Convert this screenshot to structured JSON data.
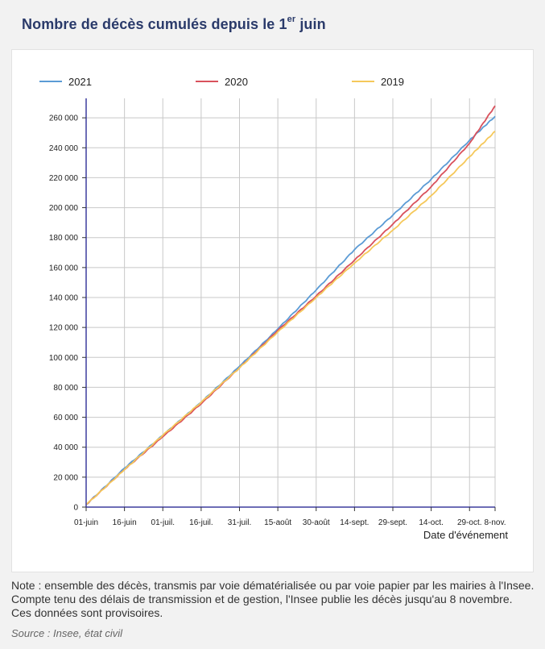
{
  "header": {
    "title_main": "Nombre de décès cumulés depuis le 1",
    "title_sup": "er",
    "title_end": " juin"
  },
  "footer": {
    "note": "Note : ensemble des décès, transmis par voie dématérialisée ou par voie papier par les mairies à l'Insee. Compte tenu des délais de transmission et de gestion, l'Insee publie les décès jusqu'au 8 novembre. Ces données sont provisoires.",
    "source": "Source : Insee, état civil"
  },
  "chart_data": {
    "type": "line",
    "xlabel": "Date d'événement",
    "ylabel": "",
    "x_start": "2021-06-01",
    "x_end": "2021-11-08",
    "x_ticks": [
      {
        "label": "01-juin",
        "date": "2021-06-01"
      },
      {
        "label": "16-juin",
        "date": "2021-06-16"
      },
      {
        "label": "01-juil.",
        "date": "2021-07-01"
      },
      {
        "label": "16-juil.",
        "date": "2021-07-16"
      },
      {
        "label": "31-juil.",
        "date": "2021-07-31"
      },
      {
        "label": "15-août",
        "date": "2021-08-15"
      },
      {
        "label": "30-août",
        "date": "2021-08-30"
      },
      {
        "label": "14-sept.",
        "date": "2021-09-14"
      },
      {
        "label": "29-sept.",
        "date": "2021-09-29"
      },
      {
        "label": "14-oct.",
        "date": "2021-10-14"
      },
      {
        "label": "29-oct.",
        "date": "2021-10-29"
      },
      {
        "label": "8-nov.",
        "date": "2021-11-08"
      }
    ],
    "y_ticks": [
      0,
      20000,
      40000,
      60000,
      80000,
      100000,
      120000,
      140000,
      160000,
      180000,
      200000,
      220000,
      240000,
      260000
    ],
    "y_tick_labels": [
      "0",
      "20 000",
      "40 000",
      "60 000",
      "80 000",
      "100 000",
      "120 000",
      "140 000",
      "160 000",
      "180 000",
      "200 000",
      "220 000",
      "240 000",
      "260 000"
    ],
    "ylim": [
      0,
      273000
    ],
    "grid": true,
    "legend_position": "top",
    "series": [
      {
        "name": "2021",
        "color": "#5b9bd5",
        "points": [
          [
            "2021-06-01",
            1600
          ],
          [
            "2021-06-16",
            26000
          ],
          [
            "2021-07-01",
            48000
          ],
          [
            "2021-07-16",
            70000
          ],
          [
            "2021-07-31",
            94000
          ],
          [
            "2021-08-15",
            119000
          ],
          [
            "2021-08-30",
            145000
          ],
          [
            "2021-09-14",
            172000
          ],
          [
            "2021-09-29",
            195000
          ],
          [
            "2021-10-14",
            219000
          ],
          [
            "2021-10-29",
            245000
          ],
          [
            "2021-11-08",
            261000
          ]
        ]
      },
      {
        "name": "2020",
        "color": "#d9515c",
        "points": [
          [
            "2021-06-01",
            1600
          ],
          [
            "2021-06-16",
            25000
          ],
          [
            "2021-07-01",
            47000
          ],
          [
            "2021-07-16",
            69000
          ],
          [
            "2021-07-31",
            93000
          ],
          [
            "2021-08-15",
            118000
          ],
          [
            "2021-08-30",
            141000
          ],
          [
            "2021-09-14",
            165000
          ],
          [
            "2021-09-29",
            189000
          ],
          [
            "2021-10-14",
            214000
          ],
          [
            "2021-10-29",
            243000
          ],
          [
            "2021-11-08",
            268000
          ]
        ]
      },
      {
        "name": "2019",
        "color": "#f5c85a",
        "points": [
          [
            "2021-06-01",
            1600
          ],
          [
            "2021-06-16",
            25000
          ],
          [
            "2021-07-01",
            48000
          ],
          [
            "2021-07-16",
            70000
          ],
          [
            "2021-07-31",
            93000
          ],
          [
            "2021-08-15",
            117000
          ],
          [
            "2021-08-30",
            140000
          ],
          [
            "2021-09-14",
            163000
          ],
          [
            "2021-09-29",
            185000
          ],
          [
            "2021-10-14",
            208000
          ],
          [
            "2021-10-29",
            234000
          ],
          [
            "2021-11-08",
            251000
          ]
        ]
      }
    ]
  }
}
